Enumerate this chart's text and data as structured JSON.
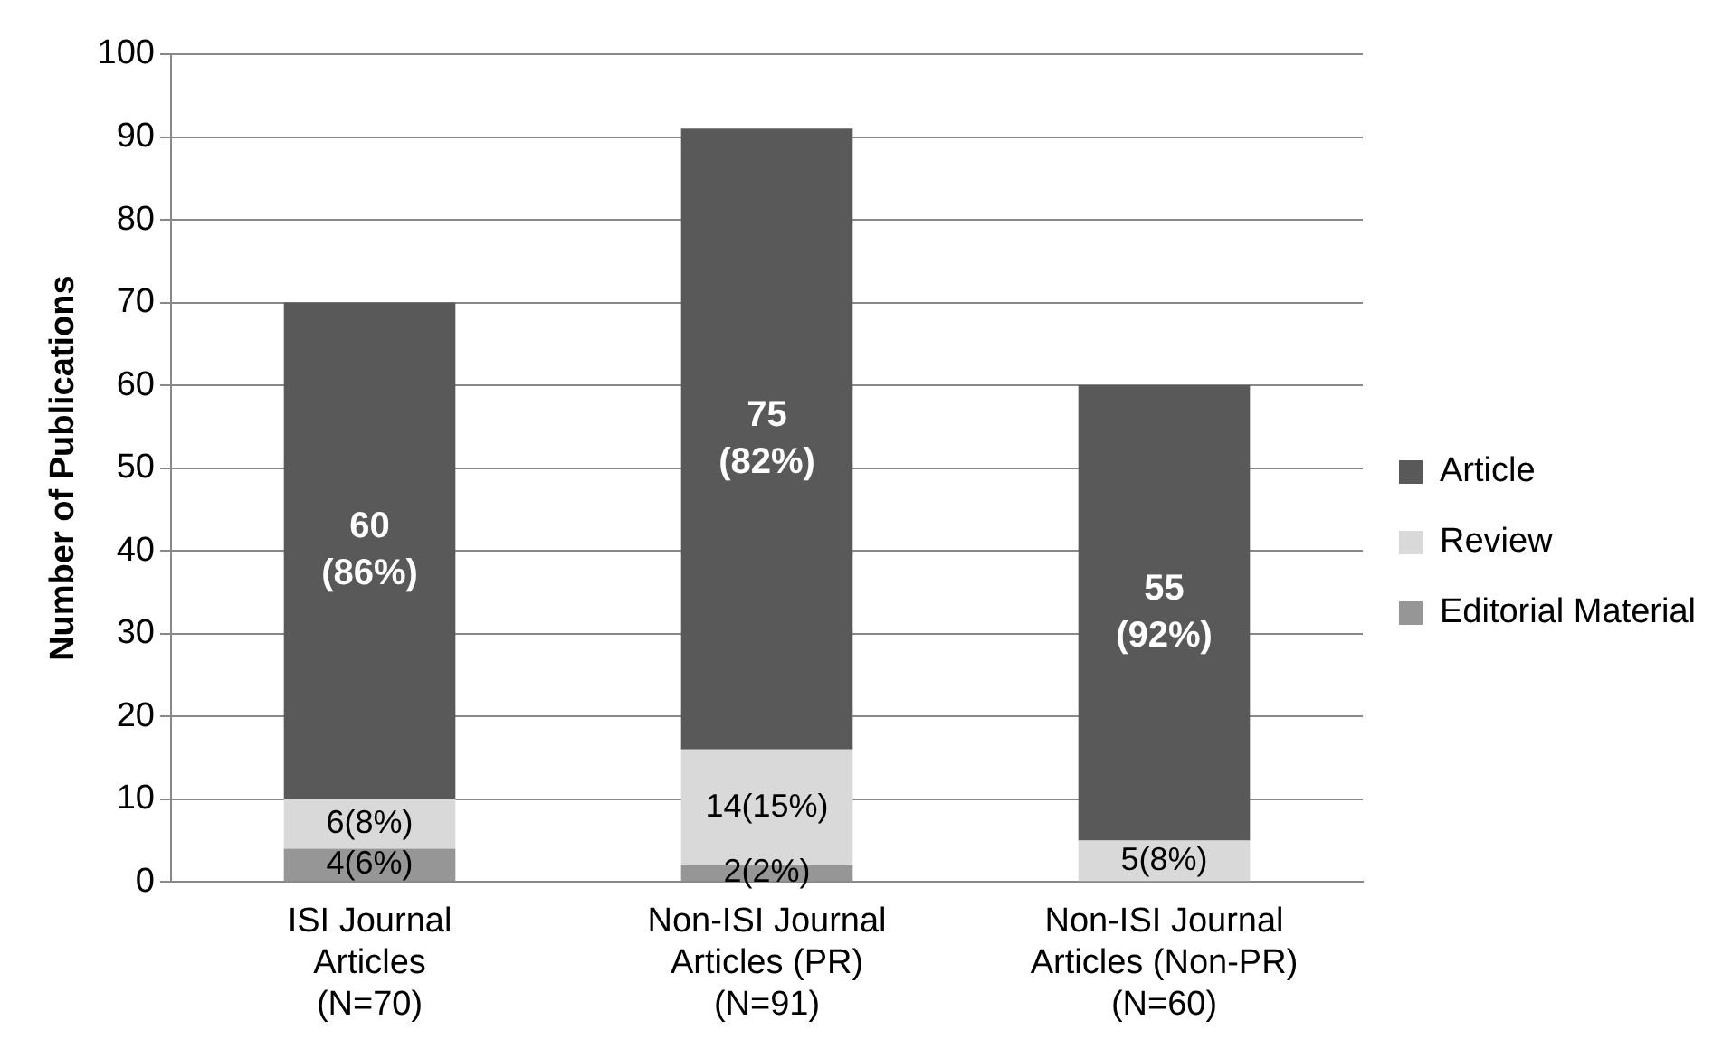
{
  "chart_data": {
    "type": "bar",
    "stacked": true,
    "ylabel": "Number of Publications",
    "categories": [
      "ISI Journal\nArticles\n(N=70)",
      "Non-ISI Journal\nArticles (PR)\n(N=91)",
      "Non-ISI Journal\nArticles (Non-PR)\n(N=60)"
    ],
    "series": [
      {
        "name": "Editorial Material",
        "color": "#969696",
        "values": [
          4,
          2,
          0
        ],
        "value_labels": [
          "4(6%)",
          "2(2%)",
          null
        ]
      },
      {
        "name": "Review",
        "color": "#d9d9d9",
        "values": [
          6,
          14,
          5
        ],
        "value_labels": [
          "6(8%)",
          "14(15%)",
          "5(8%)"
        ]
      },
      {
        "name": "Article",
        "color": "#595959",
        "values": [
          60,
          75,
          55
        ],
        "value_labels": [
          "60 (86%)",
          "75 (82%)",
          "55 (92%)"
        ]
      }
    ],
    "ylim": [
      0,
      100
    ],
    "yticks": [
      0,
      10,
      20,
      30,
      40,
      50,
      60,
      70,
      80,
      90,
      100
    ],
    "grid": "y",
    "legend": "right"
  }
}
